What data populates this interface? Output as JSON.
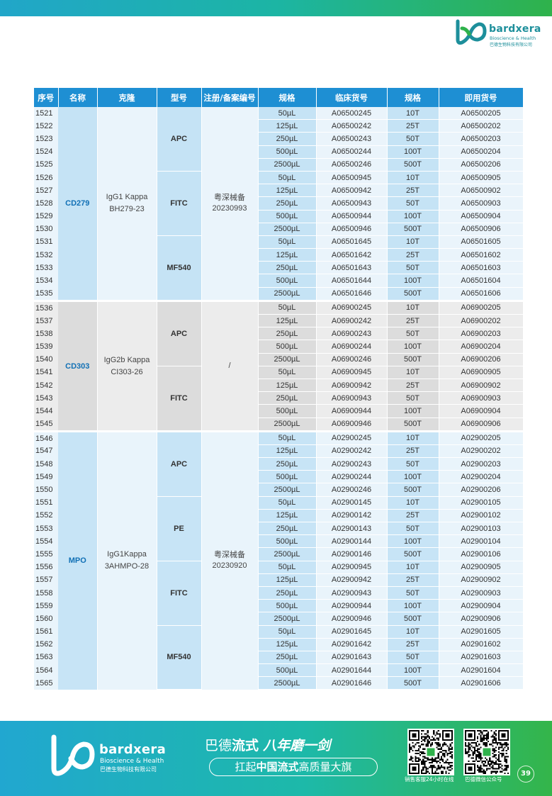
{
  "brand": {
    "name": "bardxera",
    "sub_en": "Bioscience & Health",
    "sub_cn": "巴德生物科技有限公司"
  },
  "table": {
    "headers": [
      "序号",
      "名称",
      "克隆",
      "型号",
      "注册/备案编号",
      "规格",
      "临床货号",
      "规格",
      "即用货号"
    ],
    "groups": [
      {
        "name": "CD279",
        "clone": [
          "IgG1 Kappa",
          "BH279-23"
        ],
        "reg": [
          "粤深械备",
          "20230993"
        ],
        "start": 1521,
        "models": [
          {
            "label": "APC",
            "rows": [
              [
                "50µL",
                "A06500245",
                "10T",
                "A06500205"
              ],
              [
                "125µL",
                "A06500242",
                "25T",
                "A06500202"
              ],
              [
                "250µL",
                "A06500243",
                "50T",
                "A06500203"
              ],
              [
                "500µL",
                "A06500244",
                "100T",
                "A06500204"
              ],
              [
                "2500µL",
                "A06500246",
                "500T",
                "A06500206"
              ]
            ]
          },
          {
            "label": "FITC",
            "rows": [
              [
                "50µL",
                "A06500945",
                "10T",
                "A06500905"
              ],
              [
                "125µL",
                "A06500942",
                "25T",
                "A06500902"
              ],
              [
                "250µL",
                "A06500943",
                "50T",
                "A06500903"
              ],
              [
                "500µL",
                "A06500944",
                "100T",
                "A06500904"
              ],
              [
                "2500µL",
                "A06500946",
                "500T",
                "A06500906"
              ]
            ]
          },
          {
            "label": "MF540",
            "rows": [
              [
                "50µL",
                "A06501645",
                "10T",
                "A06501605"
              ],
              [
                "125µL",
                "A06501642",
                "25T",
                "A06501602"
              ],
              [
                "250µL",
                "A06501643",
                "50T",
                "A06501603"
              ],
              [
                "500µL",
                "A06501644",
                "100T",
                "A06501604"
              ],
              [
                "2500µL",
                "A06501646",
                "500T",
                "A06501606"
              ]
            ]
          }
        ]
      },
      {
        "name": "CD303",
        "clone": [
          "IgG2b Kappa",
          "CI303-26"
        ],
        "reg": [
          "/"
        ],
        "start": 1536,
        "models": [
          {
            "label": "APC",
            "rows": [
              [
                "50µL",
                "A06900245",
                "10T",
                "A06900205"
              ],
              [
                "125µL",
                "A06900242",
                "25T",
                "A06900202"
              ],
              [
                "250µL",
                "A06900243",
                "50T",
                "A06900203"
              ],
              [
                "500µL",
                "A06900244",
                "100T",
                "A06900204"
              ],
              [
                "2500µL",
                "A06900246",
                "500T",
                "A06900206"
              ]
            ]
          },
          {
            "label": "FITC",
            "rows": [
              [
                "50µL",
                "A06900945",
                "10T",
                "A06900905"
              ],
              [
                "125µL",
                "A06900942",
                "25T",
                "A06900902"
              ],
              [
                "250µL",
                "A06900943",
                "50T",
                "A06900903"
              ],
              [
                "500µL",
                "A06900944",
                "100T",
                "A06900904"
              ],
              [
                "2500µL",
                "A06900946",
                "500T",
                "A06900906"
              ]
            ]
          }
        ]
      },
      {
        "name": "MPO",
        "clone": [
          "IgG1Kappa",
          "3AHMPO-28"
        ],
        "reg": [
          "粤深械备",
          "20230920"
        ],
        "start": 1546,
        "models": [
          {
            "label": "APC",
            "rows": [
              [
                "50µL",
                "A02900245",
                "10T",
                "A02900205"
              ],
              [
                "125µL",
                "A02900242",
                "25T",
                "A02900202"
              ],
              [
                "250µL",
                "A02900243",
                "50T",
                "A02900203"
              ],
              [
                "500µL",
                "A02900244",
                "100T",
                "A02900204"
              ],
              [
                "2500µL",
                "A02900246",
                "500T",
                "A02900206"
              ]
            ]
          },
          {
            "label": "PE",
            "rows": [
              [
                "50µL",
                "A02900145",
                "10T",
                "A02900105"
              ],
              [
                "125µL",
                "A02900142",
                "25T",
                "A02900102"
              ],
              [
                "250µL",
                "A02900143",
                "50T",
                "A02900103"
              ],
              [
                "500µL",
                "A02900144",
                "100T",
                "A02900104"
              ],
              [
                "2500µL",
                "A02900146",
                "500T",
                "A02900106"
              ]
            ]
          },
          {
            "label": "FITC",
            "rows": [
              [
                "50µL",
                "A02900945",
                "10T",
                "A02900905"
              ],
              [
                "125µL",
                "A02900942",
                "25T",
                "A02900902"
              ],
              [
                "250µL",
                "A02900943",
                "50T",
                "A02900903"
              ],
              [
                "500µL",
                "A02900944",
                "100T",
                "A02900904"
              ],
              [
                "2500µL",
                "A02900946",
                "500T",
                "A02900906"
              ]
            ]
          },
          {
            "label": "MF540",
            "rows": [
              [
                "50µL",
                "A02901645",
                "10T",
                "A02901605"
              ],
              [
                "125µL",
                "A02901642",
                "25T",
                "A02901602"
              ],
              [
                "250µL",
                "A02901643",
                "50T",
                "A02901603"
              ],
              [
                "500µL",
                "A02901644",
                "100T",
                "A02901604"
              ],
              [
                "2500µL",
                "A02901646",
                "500T",
                "A02901606"
              ]
            ]
          }
        ]
      }
    ]
  },
  "footer": {
    "slogan_a": "巴德",
    "slogan_b": "流式",
    "slogan_c": "八年磨一剑",
    "slogan2_a": "扛起",
    "slogan2_b": "中国流式",
    "slogan2_c": "高质量大旗",
    "qr1_caption": "销售客服24小时在线",
    "qr2_caption": "巴德微信公众号",
    "page_number": "39"
  }
}
